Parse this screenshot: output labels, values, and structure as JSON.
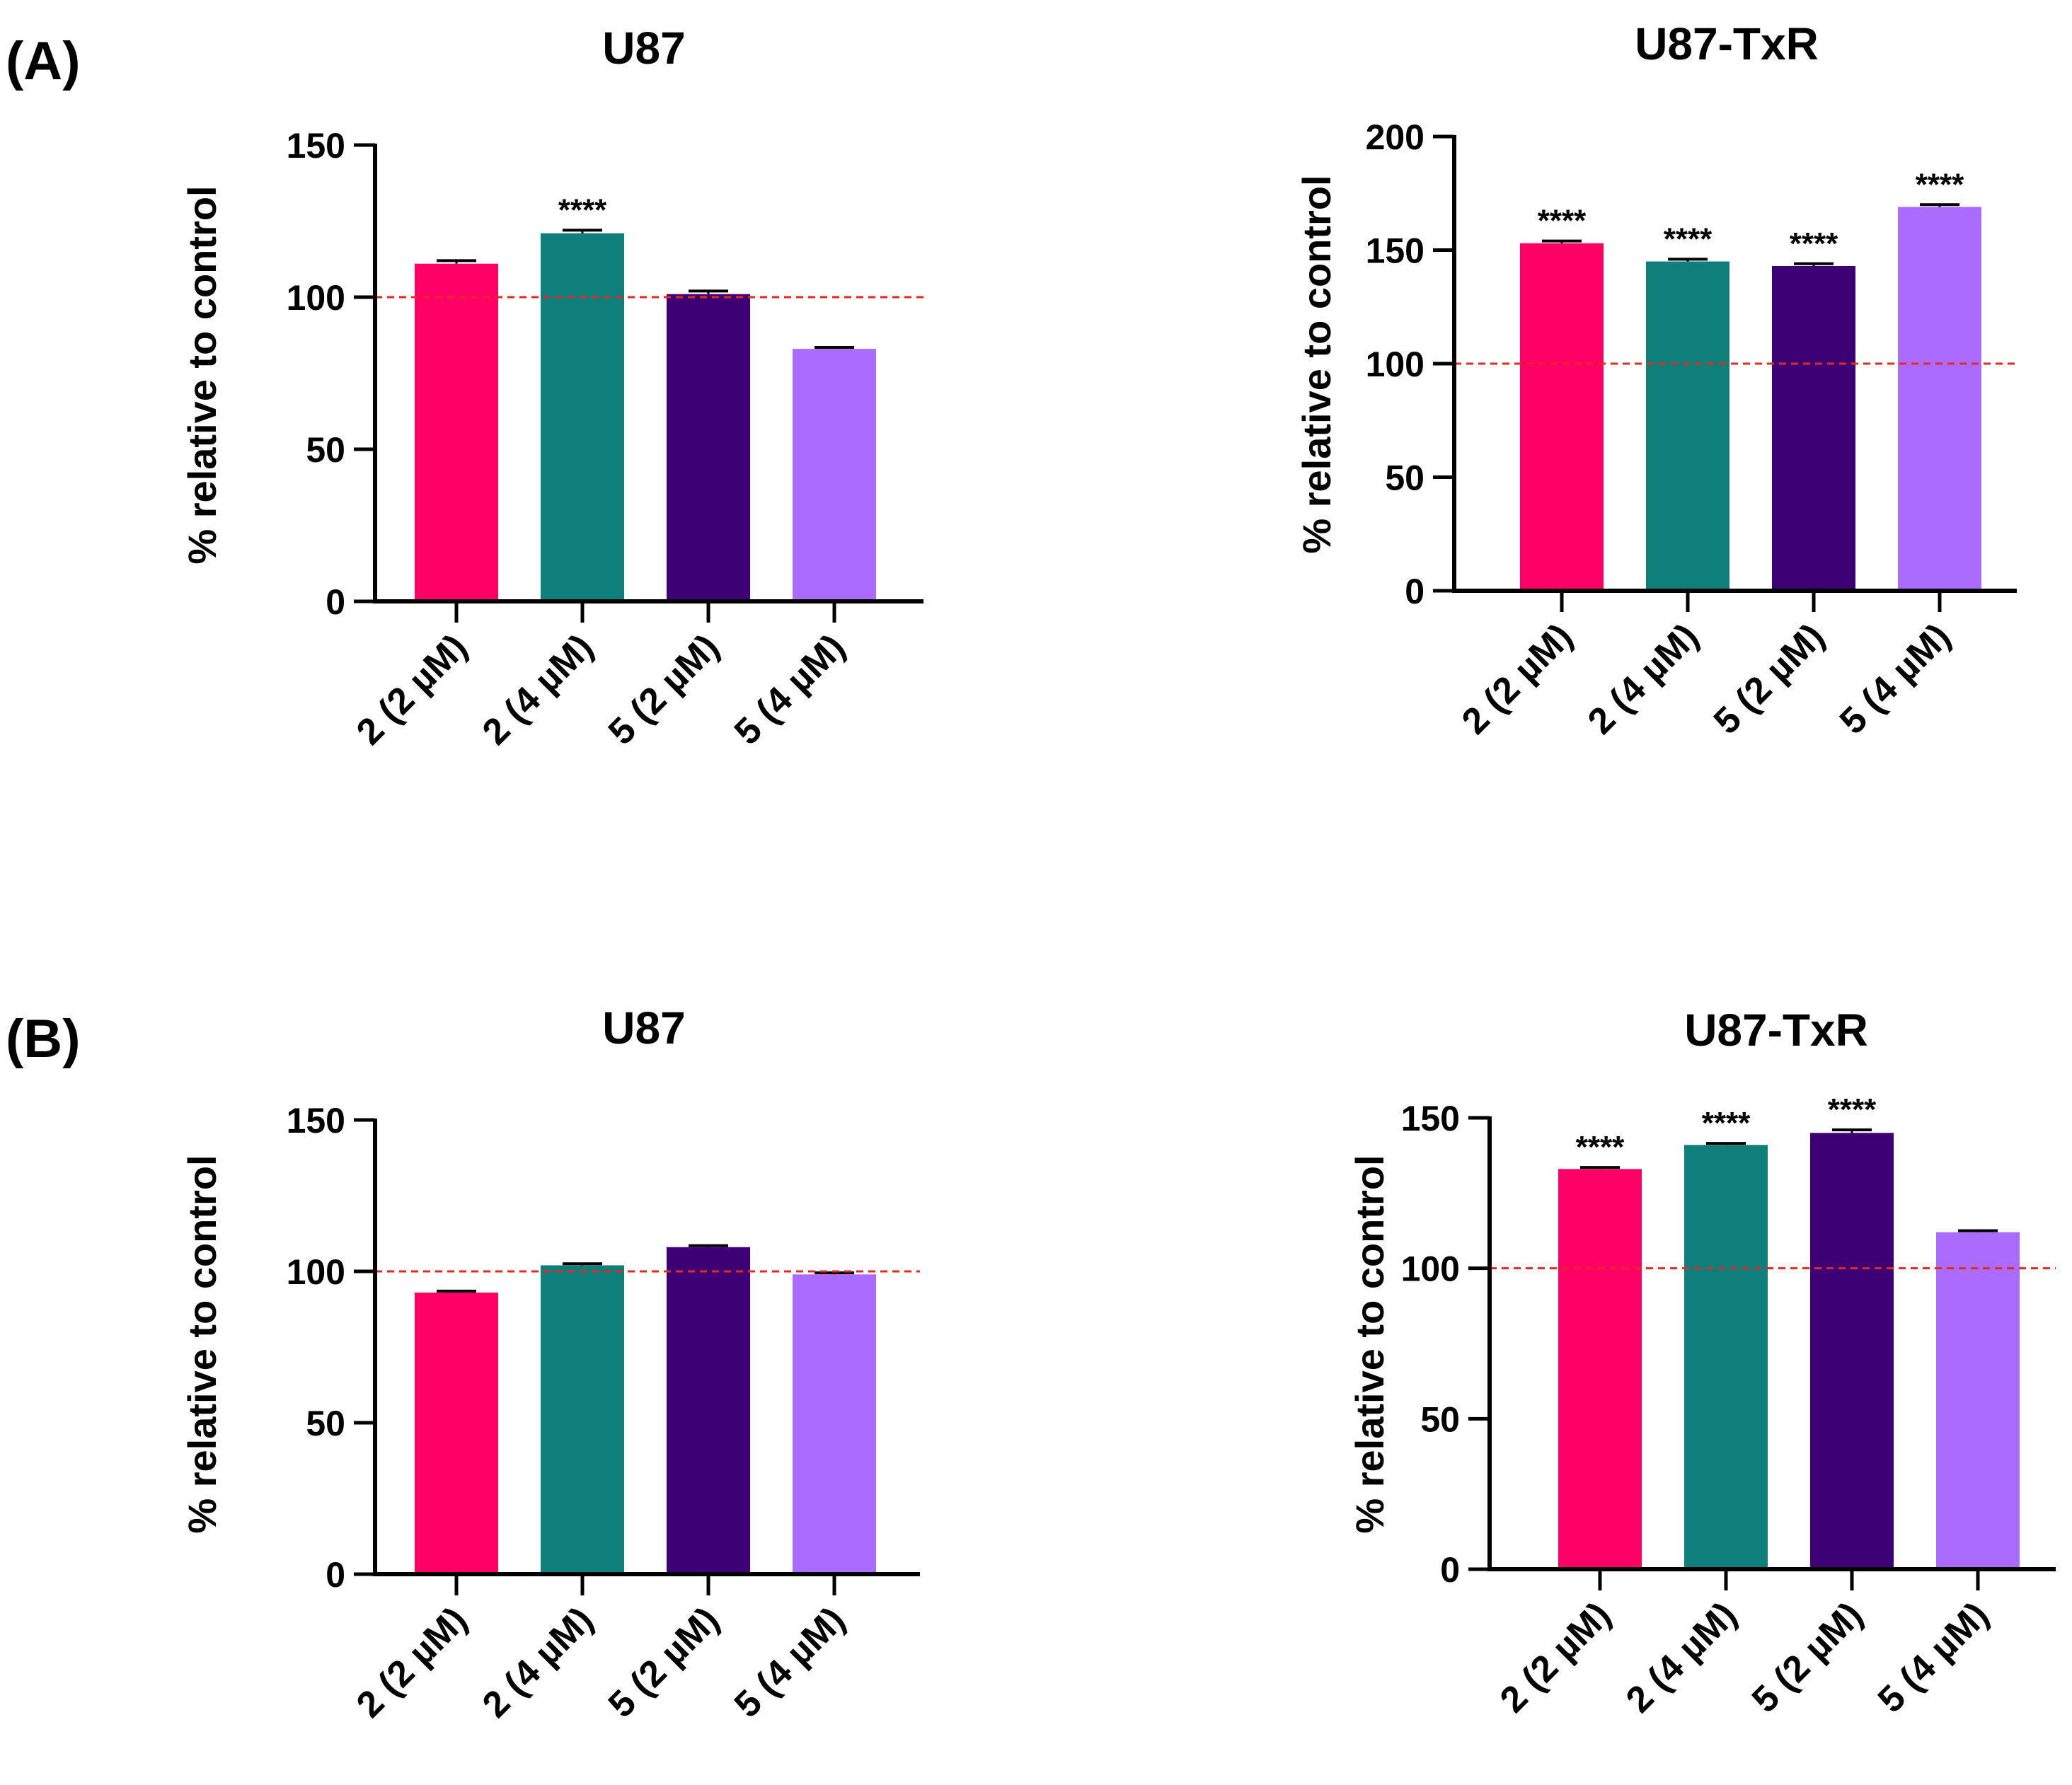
{
  "panels": [
    {
      "label": "(A)"
    },
    {
      "label": "(B)"
    }
  ],
  "chart_data": [
    {
      "type": "bar",
      "panel": "(A)",
      "title": "U87",
      "ylabel": "% relative to control",
      "xlabel": "",
      "ylim": [
        0,
        150
      ],
      "yticks": [
        0,
        50,
        100,
        150
      ],
      "categories": [
        "2  (2 µM)",
        "2  (4 µM)",
        "5  (2 µM)",
        "5  (4 µM)"
      ],
      "values": [
        111,
        121,
        101,
        83
      ],
      "errors": [
        1,
        1,
        1,
        0.5
      ],
      "significance": [
        "",
        "****",
        "",
        ""
      ],
      "colors": [
        "#ff0066",
        "#0f7f7b",
        "#3d0075",
        "#ac6bff"
      ],
      "reference_line": 100,
      "reference_color": "#e8281e"
    },
    {
      "type": "bar",
      "panel": "(A)",
      "title": "U87-TxR",
      "ylabel": "% relative to control",
      "xlabel": "",
      "ylim": [
        0,
        200
      ],
      "yticks": [
        0,
        50,
        100,
        150,
        200
      ],
      "categories": [
        "2  (2 µM)",
        "2  (4 µM)",
        "5  (2 µM)",
        "5  (4 µM)"
      ],
      "values": [
        153,
        145,
        143,
        169
      ],
      "errors": [
        1,
        1,
        1,
        1
      ],
      "significance": [
        "****",
        "****",
        "****",
        "****"
      ],
      "colors": [
        "#ff0066",
        "#0f7f7b",
        "#3d0075",
        "#ac6bff"
      ],
      "reference_line": 100,
      "reference_color": "#e8281e"
    },
    {
      "type": "bar",
      "panel": "(B)",
      "title": "U87",
      "ylabel": "% relative to control",
      "xlabel": "",
      "ylim": [
        0,
        150
      ],
      "yticks": [
        0,
        50,
        100,
        150
      ],
      "categories": [
        "2  (2 µM)",
        "2  (4 µM)",
        "5  (2 µM)",
        "5  (4 µM)"
      ],
      "values": [
        93,
        102,
        108,
        99
      ],
      "errors": [
        0.5,
        0.5,
        0.5,
        0.5
      ],
      "significance": [
        "",
        "",
        "",
        ""
      ],
      "colors": [
        "#ff0066",
        "#0f7f7b",
        "#3d0075",
        "#ac6bff"
      ],
      "reference_line": 100,
      "reference_color": "#e8281e"
    },
    {
      "type": "bar",
      "panel": "(B)",
      "title": "U87-TxR",
      "ylabel": "% relative to control",
      "xlabel": "",
      "ylim": [
        0,
        150
      ],
      "yticks": [
        0,
        50,
        100,
        150
      ],
      "categories": [
        "2  (2 µM)",
        "2  (4 µM)",
        "5  (2 µM)",
        "5  (4 µM)"
      ],
      "values": [
        133,
        141,
        145,
        112
      ],
      "errors": [
        0.5,
        0.5,
        1,
        0.5
      ],
      "significance": [
        "****",
        "****",
        "****",
        ""
      ],
      "colors": [
        "#ff0066",
        "#0f7f7b",
        "#3d0075",
        "#ac6bff"
      ],
      "reference_line": 100,
      "reference_color": "#e8281e"
    }
  ]
}
